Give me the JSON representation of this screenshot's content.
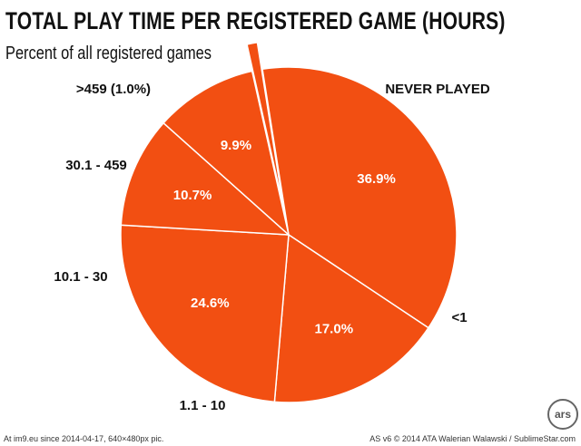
{
  "chart_data": {
    "type": "pie",
    "title": "TOTAL PLAY TIME PER REGISTERED GAME (HOURS)",
    "subtitle": "Percent of all registered games",
    "color": "#f24f12",
    "stroke_color": "#ffffff",
    "slices": [
      {
        "label": "NEVER PLAYED",
        "value": 36.9,
        "value_label": "36.9%",
        "exploded": false
      },
      {
        "label": "<1",
        "value": 17.0,
        "value_label": "17.0%",
        "exploded": false
      },
      {
        "label": "1.1 - 10",
        "value": 24.6,
        "value_label": "24.6%",
        "exploded": false
      },
      {
        "label": "10.1 - 30",
        "value": 10.7,
        "value_label": "10.7%",
        "exploded": false
      },
      {
        "label": "30.1 - 459",
        "value": 9.9,
        "value_label": "9.9%",
        "exploded": false
      },
      {
        "label": ">459 (1.0%)",
        "value": 1.0,
        "value_label": "",
        "exploded": true
      }
    ]
  },
  "logo_text": "ars",
  "footer": {
    "left": "At im9.eu since 2014-04-17, 640×480px pic.",
    "right": "AS v6 © 2014 ATA Walerian Walawski / SublimeStar.com"
  }
}
